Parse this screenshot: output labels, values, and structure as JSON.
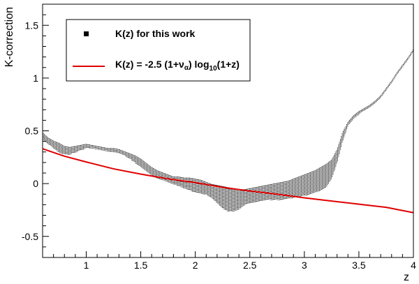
{
  "chart_data": {
    "type": "scatter",
    "title": "",
    "xlabel": "z",
    "ylabel": "K-correction",
    "xlim": [
      0.6,
      4.0
    ],
    "ylim": [
      -0.7,
      1.7
    ],
    "x_ticks": [
      1,
      1.5,
      2,
      2.5,
      3,
      3.5,
      4
    ],
    "x_tick_labels": [
      "1",
      "1.5",
      "2",
      "2.5",
      "3",
      "3.5",
      "4"
    ],
    "y_ticks": [
      -0.5,
      0,
      0.5,
      1,
      1.5
    ],
    "y_tick_labels": [
      "-0.5",
      "0",
      "0.5",
      "1",
      "1.5"
    ],
    "grid": false,
    "legend_position": "top-left",
    "series": [
      {
        "name": "K(z) for this work",
        "kind": "band-scatter",
        "color": "#000000",
        "x": [
          0.6,
          0.65,
          0.7,
          0.75,
          0.8,
          0.85,
          0.9,
          0.95,
          1.0,
          1.05,
          1.1,
          1.15,
          1.2,
          1.25,
          1.3,
          1.35,
          1.4,
          1.45,
          1.5,
          1.55,
          1.6,
          1.65,
          1.7,
          1.75,
          1.8,
          1.85,
          1.9,
          1.95,
          2.0,
          2.05,
          2.1,
          2.15,
          2.2,
          2.25,
          2.3,
          2.35,
          2.4,
          2.45,
          2.5,
          2.55,
          2.6,
          2.65,
          2.7,
          2.75,
          2.8,
          2.85,
          2.9,
          2.95,
          3.0,
          3.05,
          3.1,
          3.15,
          3.2,
          3.25,
          3.3,
          3.35,
          3.4,
          3.45,
          3.5,
          3.55,
          3.6,
          3.65,
          3.7,
          3.75,
          3.8,
          3.85,
          3.9,
          3.95,
          4.0
        ],
        "y_upper": [
          0.48,
          0.43,
          0.4,
          0.38,
          0.35,
          0.34,
          0.35,
          0.36,
          0.37,
          0.36,
          0.35,
          0.34,
          0.33,
          0.33,
          0.32,
          0.3,
          0.28,
          0.26,
          0.23,
          0.19,
          0.15,
          0.12,
          0.1,
          0.08,
          0.06,
          0.06,
          0.05,
          0.05,
          0.04,
          0.03,
          0.01,
          -0.01,
          -0.02,
          -0.03,
          -0.04,
          -0.05,
          -0.06,
          -0.06,
          -0.05,
          -0.04,
          -0.03,
          -0.02,
          -0.01,
          0.0,
          0.01,
          0.02,
          0.04,
          0.06,
          0.08,
          0.1,
          0.12,
          0.15,
          0.18,
          0.22,
          0.32,
          0.48,
          0.58,
          0.64,
          0.68,
          0.71,
          0.74,
          0.78,
          0.83,
          0.9,
          0.97,
          1.05,
          1.12,
          1.19,
          1.27
        ],
        "y_lower": [
          0.42,
          0.38,
          0.34,
          0.3,
          0.28,
          0.28,
          0.3,
          0.32,
          0.34,
          0.34,
          0.33,
          0.32,
          0.31,
          0.3,
          0.29,
          0.27,
          0.24,
          0.2,
          0.16,
          0.12,
          0.08,
          0.05,
          0.04,
          0.02,
          0.0,
          -0.02,
          -0.04,
          -0.06,
          -0.08,
          -0.09,
          -0.1,
          -0.13,
          -0.18,
          -0.23,
          -0.26,
          -0.26,
          -0.24,
          -0.2,
          -0.18,
          -0.17,
          -0.16,
          -0.15,
          -0.15,
          -0.15,
          -0.15,
          -0.14,
          -0.13,
          -0.12,
          -0.11,
          -0.1,
          -0.08,
          -0.06,
          -0.03,
          0.05,
          0.2,
          0.4,
          0.55,
          0.62,
          0.66,
          0.7,
          0.73,
          0.77,
          0.82,
          0.89,
          0.96,
          1.04,
          1.11,
          1.18,
          1.26
        ]
      },
      {
        "name": "K(z) = -2.5 (1+ν_α) log10(1+z)",
        "kind": "line",
        "color": "#e00000",
        "x": [
          0.6,
          0.8,
          1.0,
          1.25,
          1.5,
          1.75,
          2.0,
          2.25,
          2.5,
          2.75,
          3.0,
          3.25,
          3.5,
          3.75,
          4.0
        ],
        "y": [
          0.33,
          0.26,
          0.205,
          0.14,
          0.09,
          0.045,
          0.01,
          -0.035,
          -0.07,
          -0.1,
          -0.135,
          -0.165,
          -0.195,
          -0.225,
          -0.275
        ]
      }
    ]
  },
  "legend": {
    "entries": [
      {
        "prefix": "K(z) for this work"
      },
      {
        "prefix": "K(z) = -2.5 (1+",
        "nu": "ν",
        "alpha": "α",
        "mid": ") log",
        "sub10": "10",
        "suffix": "(1+z)"
      }
    ]
  }
}
